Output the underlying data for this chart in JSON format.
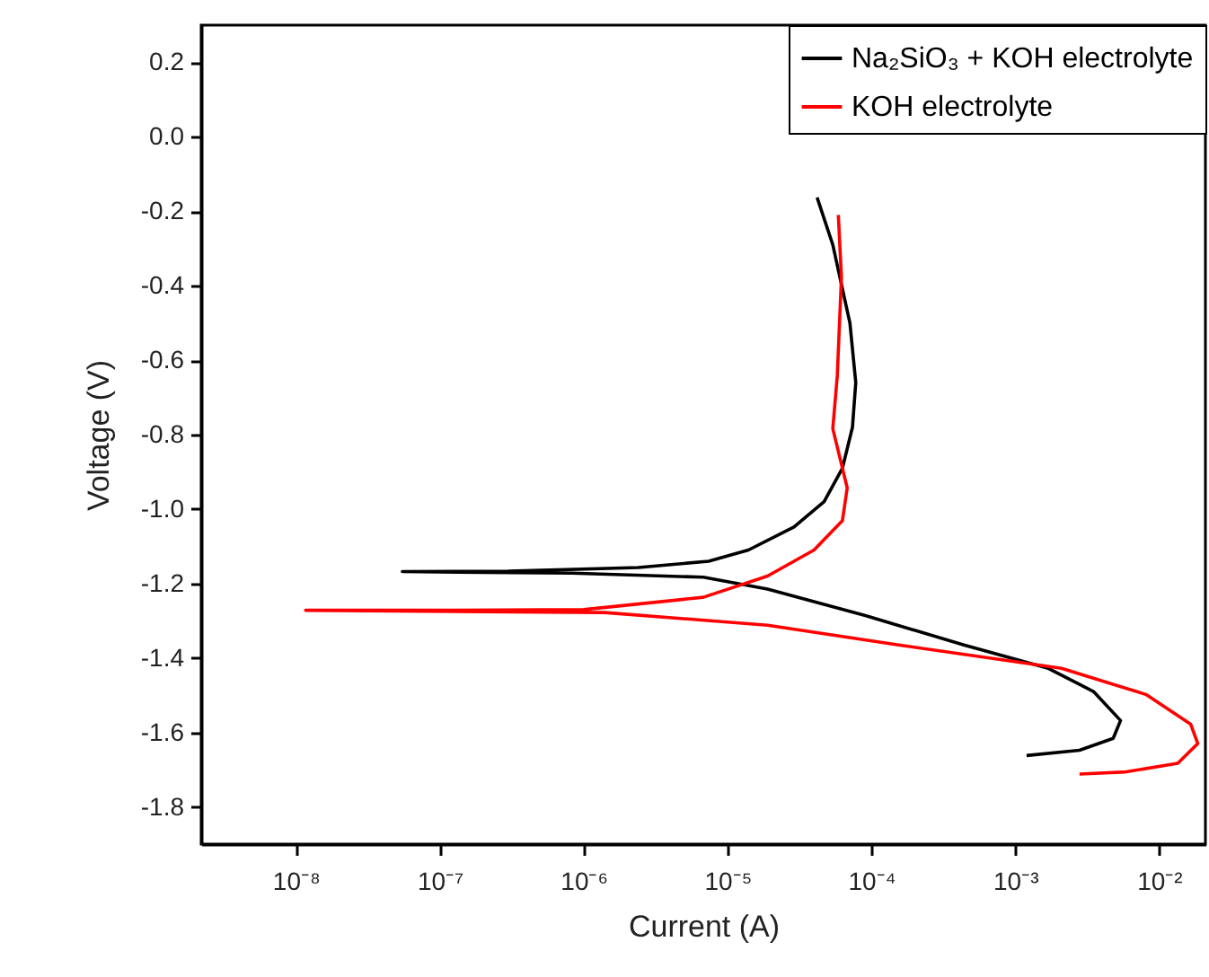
{
  "chart_data": {
    "type": "line",
    "xlabel": "Current (A)",
    "ylabel": "Voltage (V)",
    "log": "x",
    "grid": false,
    "legend": "top right",
    "marker": "none",
    "line_style": "solid",
    "xlim": [
      2.2e-09,
      0.021
    ],
    "ylim": [
      -1.9,
      0.3
    ],
    "xticks": [
      {
        "value": 1e-08,
        "label": "10⁻⁸"
      },
      {
        "value": 1e-07,
        "label": "10⁻⁷"
      },
      {
        "value": 1e-06,
        "label": "10⁻⁶"
      },
      {
        "value": 1e-05,
        "label": "10⁻⁵"
      },
      {
        "value": 0.0001,
        "label": "10⁻⁴"
      },
      {
        "value": 0.001,
        "label": "10⁻³"
      },
      {
        "value": 0.01,
        "label": "10⁻²"
      }
    ],
    "yticks": [
      -1.8,
      -1.6,
      -1.4,
      -1.2,
      {
        "value": -1,
        "label": "-1.0"
      },
      -0.8,
      -0.6,
      -0.4,
      -0.2,
      {
        "value": 0,
        "label": "0.0"
      },
      0.2
    ],
    "series": [
      {
        "name": "Na₂SiO₃ + KOH electrolyte",
        "color": "#000000",
        "x": [
          4.2e-05,
          5.4e-05,
          7.1e-05,
          7.8e-05,
          7.4e-05,
          6.3e-05,
          4.7e-05,
          2.9e-05,
          1.4e-05,
          7.4e-06,
          2.4e-06,
          3e-07,
          5.5e-08,
          8.3e-07,
          6.8e-06,
          1.9e-05,
          9.1e-05,
          0.00044,
          0.0017,
          0.0035,
          0.0054,
          0.0048,
          0.0028,
          0.0012
        ],
        "values": [
          -0.163,
          -0.29,
          -0.5,
          -0.66,
          -0.78,
          -0.89,
          -0.98,
          -1.048,
          -1.11,
          -1.14,
          -1.157,
          -1.167,
          -1.168,
          -1.172,
          -1.183,
          -1.215,
          -1.286,
          -1.365,
          -1.428,
          -1.49,
          -1.568,
          -1.616,
          -1.648,
          -1.662
        ]
      },
      {
        "name": "KOH electrolyte",
        "color": "#ff0000",
        "x": [
          5.9e-05,
          6.2e-05,
          5.8e-05,
          5.4e-05,
          6.8e-05,
          6.3e-05,
          4e-05,
          1.9e-05,
          6.8e-06,
          1e-06,
          1.05e-07,
          1.17e-08,
          1.4e-06,
          1.9e-05,
          0.000155,
          0.0021,
          0.0081,
          0.0166,
          0.0186,
          0.0135,
          0.0059,
          0.0028
        ],
        "values": [
          -0.21,
          -0.378,
          -0.643,
          -0.784,
          -0.943,
          -1.031,
          -1.11,
          -1.18,
          -1.237,
          -1.27,
          -1.272,
          -1.272,
          -1.278,
          -1.312,
          -1.365,
          -1.428,
          -1.498,
          -1.578,
          -1.63,
          -1.683,
          -1.706,
          -1.712
        ]
      }
    ]
  }
}
